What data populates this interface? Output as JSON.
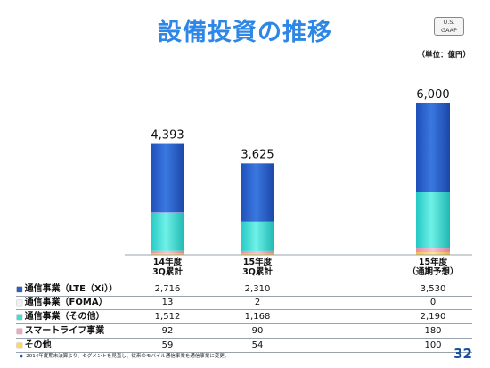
{
  "header": {
    "title": "設備投資の推移",
    "badge": "U.S.\nGAAP",
    "unit": "（単位：億円）"
  },
  "chart_data": {
    "type": "bar",
    "stacked": true,
    "categories": [
      {
        "line1": "14年度",
        "line2": "3Q累計"
      },
      {
        "line1": "15年度",
        "line2": "3Q累計"
      },
      {
        "line1": "15年度",
        "line2": "（通期予想）"
      }
    ],
    "totals": [
      "4,393",
      "3,625",
      "6,000"
    ],
    "total_values": [
      4393,
      3625,
      6000
    ],
    "series": [
      {
        "name": "通信事業（LTE（Xi））",
        "marker": "■",
        "color": "#2c5fc4",
        "values": [
          2716,
          2310,
          3530
        ],
        "labels": [
          "2,716",
          "2,310",
          "3,530"
        ]
      },
      {
        "name": "通信事業（FOMA）",
        "marker": "■",
        "color": "#f0f0f0",
        "values": [
          13,
          2,
          0
        ],
        "labels": [
          "13",
          "2",
          "0"
        ]
      },
      {
        "name": "通信事業（その他）",
        "marker": "■",
        "color": "#3ee0d6",
        "values": [
          1512,
          1168,
          2190
        ],
        "labels": [
          "1,512",
          "1,168",
          "2,190"
        ]
      },
      {
        "name": "スマートライフ事業",
        "marker": "■",
        "color": "#f2a6b8",
        "values": [
          92,
          90,
          180
        ],
        "labels": [
          "92",
          "90",
          "180"
        ]
      },
      {
        "name": "その他",
        "marker": "■",
        "color": "#ffd85a",
        "values": [
          59,
          54,
          100
        ],
        "labels": [
          "59",
          "54",
          "100"
        ]
      }
    ],
    "ylim": [
      0,
      6000
    ],
    "grid": false,
    "legend": "table-below"
  },
  "footer": {
    "marker": "◆",
    "note": "2014年度期末決算より、セグメントを見直し、従来のモバイル通信事業を通信事業に変更。",
    "page": "32"
  }
}
